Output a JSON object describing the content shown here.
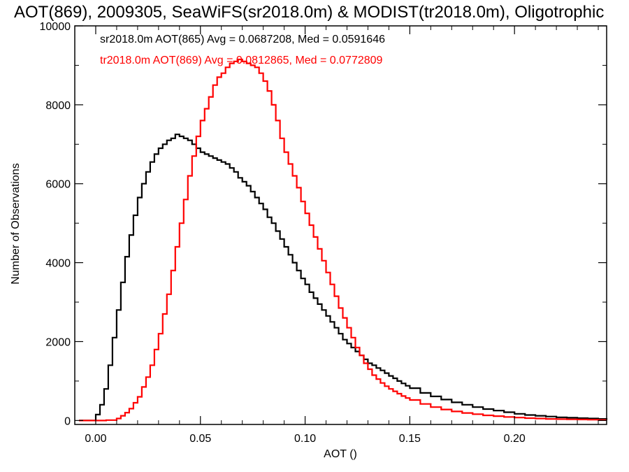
{
  "chart_data": {
    "type": "line",
    "title": "AOT(869), 2009305, SeaWiFS(sr2018.0m) & MODIST(tr2018.0m), Oligotrophic",
    "xlabel": "AOT ()",
    "ylabel": "Number of Observations",
    "xlim": [
      -0.01,
      0.244
    ],
    "ylim": [
      -100,
      10000
    ],
    "xticks": [
      0.0,
      0.05,
      0.1,
      0.15,
      0.2
    ],
    "xtick_labels": [
      "0.00",
      "0.05",
      "0.10",
      "0.15",
      "0.20"
    ],
    "yticks": [
      0,
      2000,
      4000,
      6000,
      8000,
      10000
    ],
    "ytick_labels": [
      "0",
      "2000",
      "4000",
      "6000",
      "8000",
      "10000"
    ],
    "grid": false,
    "legend_position": "top-left",
    "series": [
      {
        "name": "sr2018.0m AOT(865) Avg = 0.0687208, Med = 0.0591646",
        "color": "#000000",
        "x": [
          -0.008,
          -0.004,
          0.0,
          0.002,
          0.004,
          0.006,
          0.008,
          0.01,
          0.012,
          0.014,
          0.016,
          0.018,
          0.02,
          0.022,
          0.024,
          0.026,
          0.028,
          0.03,
          0.032,
          0.034,
          0.036,
          0.038,
          0.04,
          0.042,
          0.044,
          0.046,
          0.048,
          0.05,
          0.052,
          0.054,
          0.056,
          0.058,
          0.06,
          0.062,
          0.064,
          0.066,
          0.068,
          0.07,
          0.072,
          0.074,
          0.076,
          0.078,
          0.08,
          0.082,
          0.084,
          0.086,
          0.088,
          0.09,
          0.092,
          0.094,
          0.096,
          0.098,
          0.1,
          0.102,
          0.104,
          0.106,
          0.108,
          0.11,
          0.112,
          0.114,
          0.116,
          0.118,
          0.12,
          0.122,
          0.124,
          0.126,
          0.128,
          0.13,
          0.132,
          0.134,
          0.136,
          0.138,
          0.14,
          0.142,
          0.144,
          0.146,
          0.148,
          0.15,
          0.155,
          0.16,
          0.165,
          0.17,
          0.175,
          0.18,
          0.185,
          0.19,
          0.195,
          0.2,
          0.205,
          0.21,
          0.215,
          0.22,
          0.225,
          0.23,
          0.235,
          0.24,
          0.244
        ],
        "y": [
          0,
          0,
          150,
          400,
          800,
          1400,
          2100,
          2800,
          3500,
          4150,
          4700,
          5200,
          5650,
          6000,
          6300,
          6550,
          6750,
          6900,
          7000,
          7100,
          7150,
          7250,
          7200,
          7150,
          7100,
          7000,
          6900,
          6800,
          6750,
          6700,
          6650,
          6600,
          6550,
          6500,
          6400,
          6300,
          6150,
          6050,
          5950,
          5800,
          5650,
          5500,
          5350,
          5150,
          5000,
          4800,
          4600,
          4400,
          4200,
          4000,
          3800,
          3600,
          3450,
          3250,
          3100,
          2950,
          2800,
          2650,
          2500,
          2350,
          2200,
          2050,
          1950,
          1850,
          1750,
          1650,
          1550,
          1450,
          1400,
          1330,
          1270,
          1200,
          1130,
          1070,
          1000,
          940,
          880,
          820,
          700,
          610,
          530,
          460,
          400,
          340,
          290,
          250,
          210,
          170,
          140,
          120,
          100,
          80,
          70,
          60,
          50,
          40,
          30
        ]
      },
      {
        "name": "tr2018.0m AOT(869) Avg = 0.0812865, Med = 0.0772809",
        "color": "#ff0000",
        "x": [
          -0.008,
          0.0,
          0.005,
          0.01,
          0.012,
          0.014,
          0.016,
          0.018,
          0.02,
          0.022,
          0.024,
          0.026,
          0.028,
          0.03,
          0.032,
          0.034,
          0.036,
          0.038,
          0.04,
          0.042,
          0.044,
          0.046,
          0.048,
          0.05,
          0.052,
          0.054,
          0.056,
          0.058,
          0.06,
          0.062,
          0.064,
          0.066,
          0.068,
          0.07,
          0.072,
          0.074,
          0.076,
          0.078,
          0.08,
          0.082,
          0.084,
          0.086,
          0.088,
          0.09,
          0.092,
          0.094,
          0.096,
          0.098,
          0.1,
          0.102,
          0.104,
          0.106,
          0.108,
          0.11,
          0.112,
          0.114,
          0.116,
          0.118,
          0.12,
          0.122,
          0.124,
          0.126,
          0.128,
          0.13,
          0.132,
          0.134,
          0.136,
          0.138,
          0.14,
          0.142,
          0.144,
          0.146,
          0.148,
          0.15,
          0.155,
          0.16,
          0.165,
          0.17,
          0.175,
          0.18,
          0.185,
          0.19,
          0.195,
          0.2,
          0.205,
          0.21,
          0.215,
          0.22,
          0.225,
          0.23,
          0.235,
          0.24,
          0.244
        ],
        "y": [
          0,
          0,
          10,
          50,
          120,
          200,
          300,
          450,
          600,
          850,
          1100,
          1400,
          1800,
          2200,
          2700,
          3200,
          3800,
          4400,
          5000,
          5600,
          6200,
          6700,
          7200,
          7600,
          7900,
          8200,
          8500,
          8700,
          8800,
          8950,
          9050,
          9100,
          9150,
          9100,
          9050,
          9000,
          8950,
          8800,
          8600,
          8350,
          8000,
          7600,
          7150,
          6800,
          6500,
          6200,
          5900,
          5550,
          5250,
          4950,
          4650,
          4350,
          4050,
          3750,
          3450,
          3150,
          2850,
          2600,
          2350,
          2100,
          1850,
          1650,
          1450,
          1300,
          1150,
          1050,
          950,
          870,
          800,
          740,
          680,
          620,
          570,
          520,
          420,
          340,
          280,
          230,
          190,
          160,
          130,
          110,
          90,
          75,
          60,
          50,
          40,
          35,
          30,
          25,
          20,
          15,
          10
        ]
      }
    ]
  }
}
